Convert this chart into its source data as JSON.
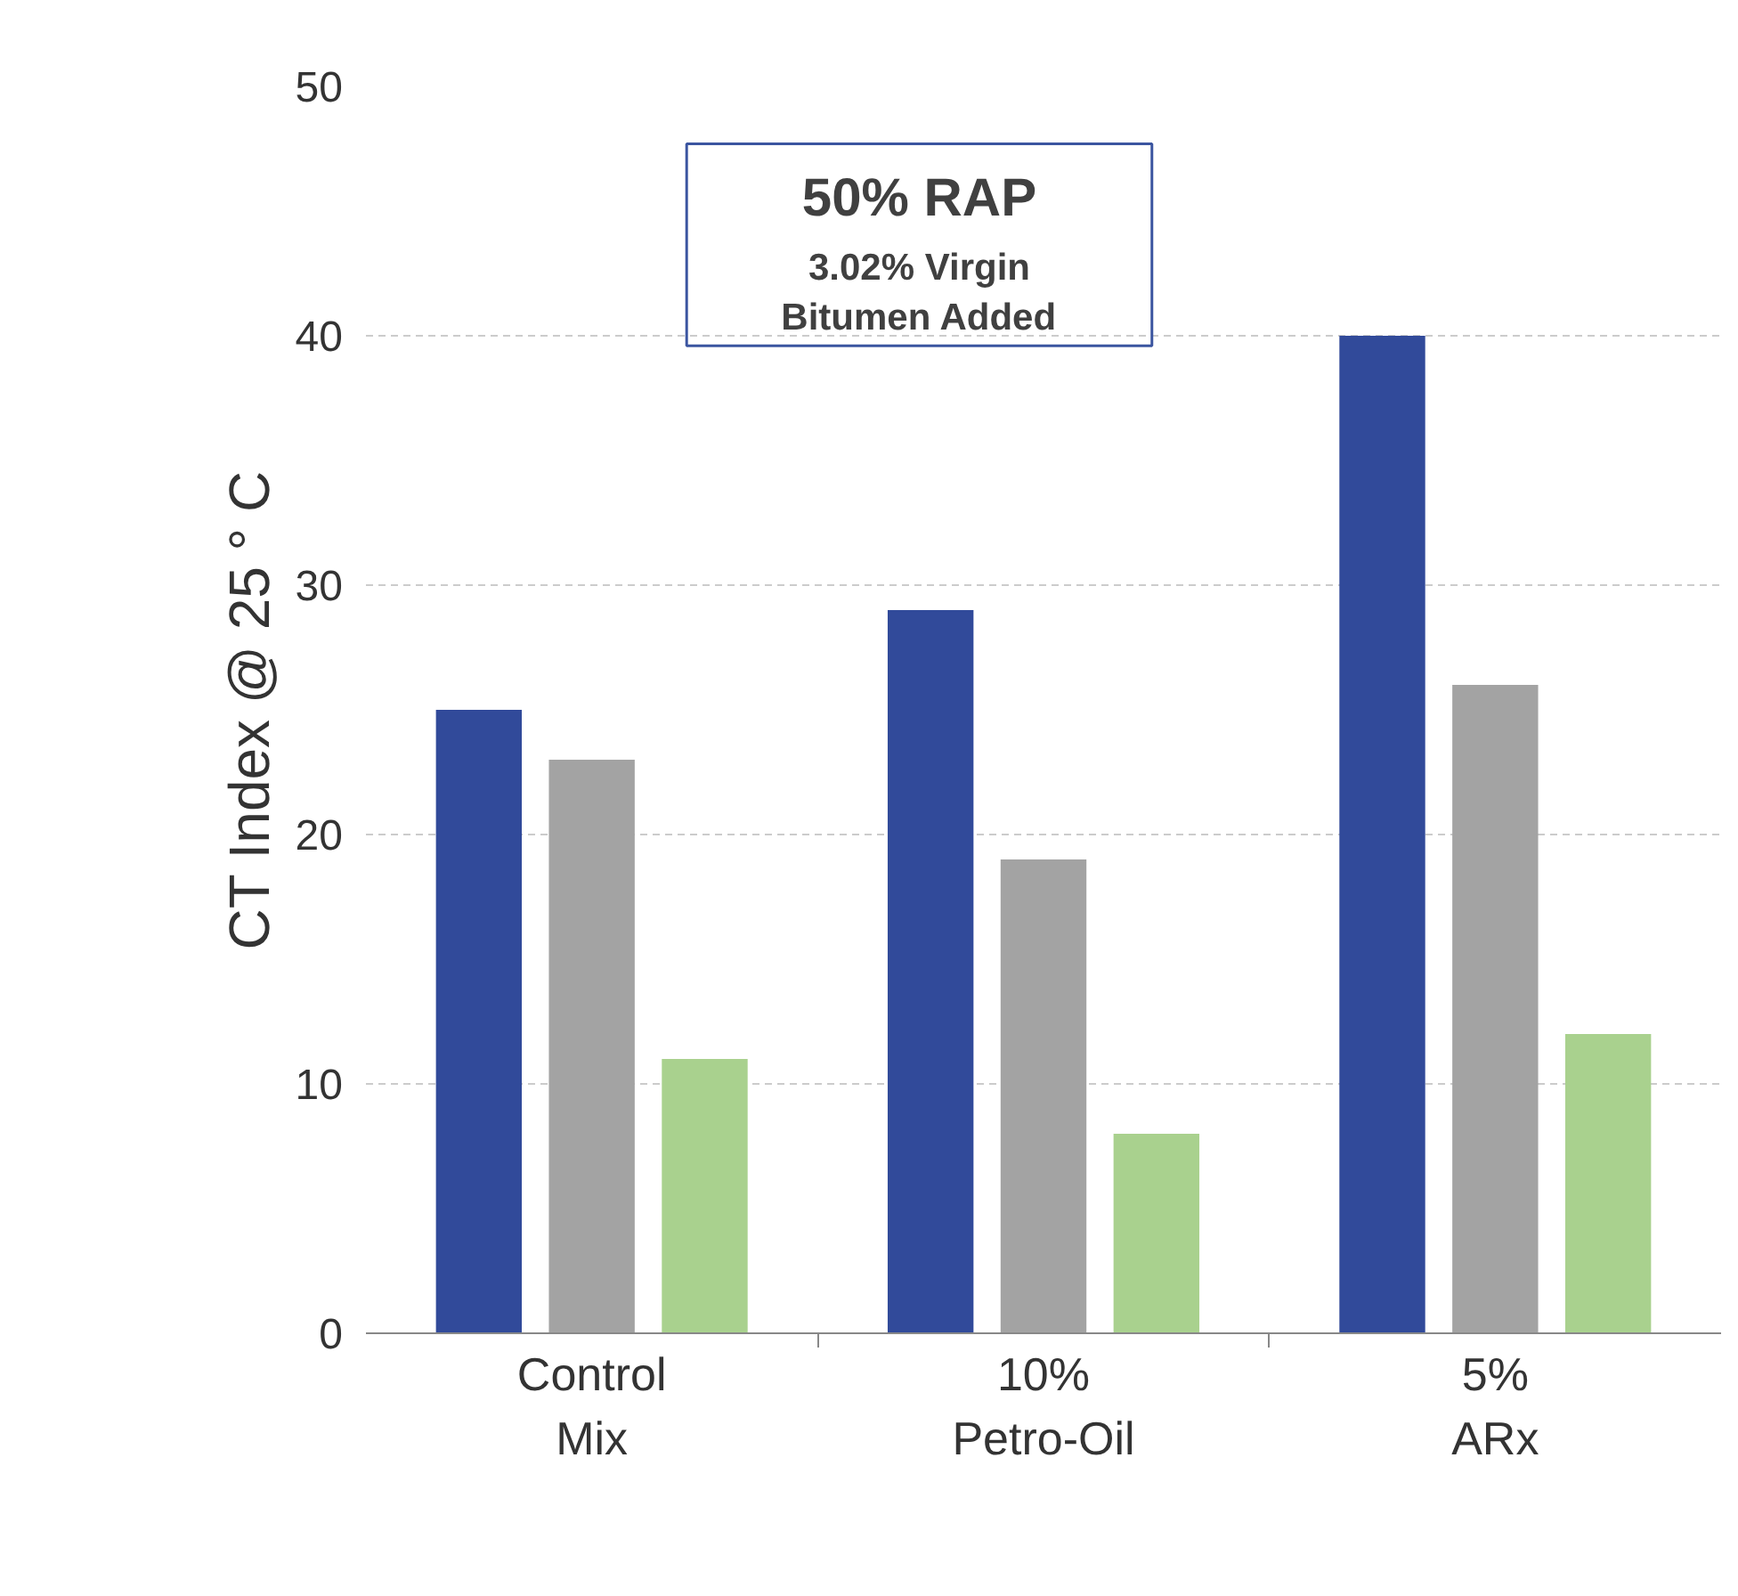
{
  "chart_data": {
    "type": "bar",
    "ylabel": "CT Index @ 25 ° C",
    "categories": [
      "Control\nMix",
      "10%\nPetro-Oil",
      "5%\nARx"
    ],
    "series": [
      {
        "color": "#314a9a",
        "values": [
          25,
          29,
          40
        ]
      },
      {
        "color": "#a3a3a3",
        "values": [
          23,
          19,
          26
        ]
      },
      {
        "color": "#a9d18e",
        "values": [
          11,
          8,
          12
        ]
      }
    ],
    "ylim": [
      0,
      50
    ],
    "yticks": [
      0,
      10,
      20,
      30,
      40,
      50
    ],
    "grid": "y",
    "annotations": [
      "50% RAP",
      "3.02% Virgin",
      "Bitumen Added"
    ]
  }
}
